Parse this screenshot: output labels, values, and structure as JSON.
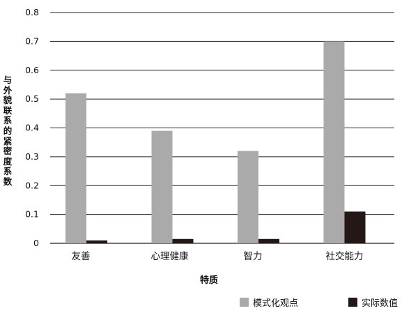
{
  "chart_data": {
    "type": "bar",
    "title": "",
    "xlabel": "特质",
    "ylabel": "与外貌联系的紧密度系数",
    "categories": [
      "友善",
      "心理健康",
      "智力",
      "社交能力"
    ],
    "series": [
      {
        "name": "模式化观点",
        "color": "#aaaaaa",
        "values": [
          0.52,
          0.39,
          0.32,
          0.7
        ]
      },
      {
        "name": "实际数值",
        "color": "#231815",
        "values": [
          0.01,
          0.015,
          0.015,
          0.11
        ]
      }
    ],
    "ylim": [
      0,
      0.8
    ],
    "yticks": [
      "0",
      "0.1",
      "0.2",
      "0.3",
      "0.4",
      "0.5",
      "0.6",
      "0.7",
      "0.8"
    ],
    "grid": true,
    "legend": "bottom-right"
  }
}
